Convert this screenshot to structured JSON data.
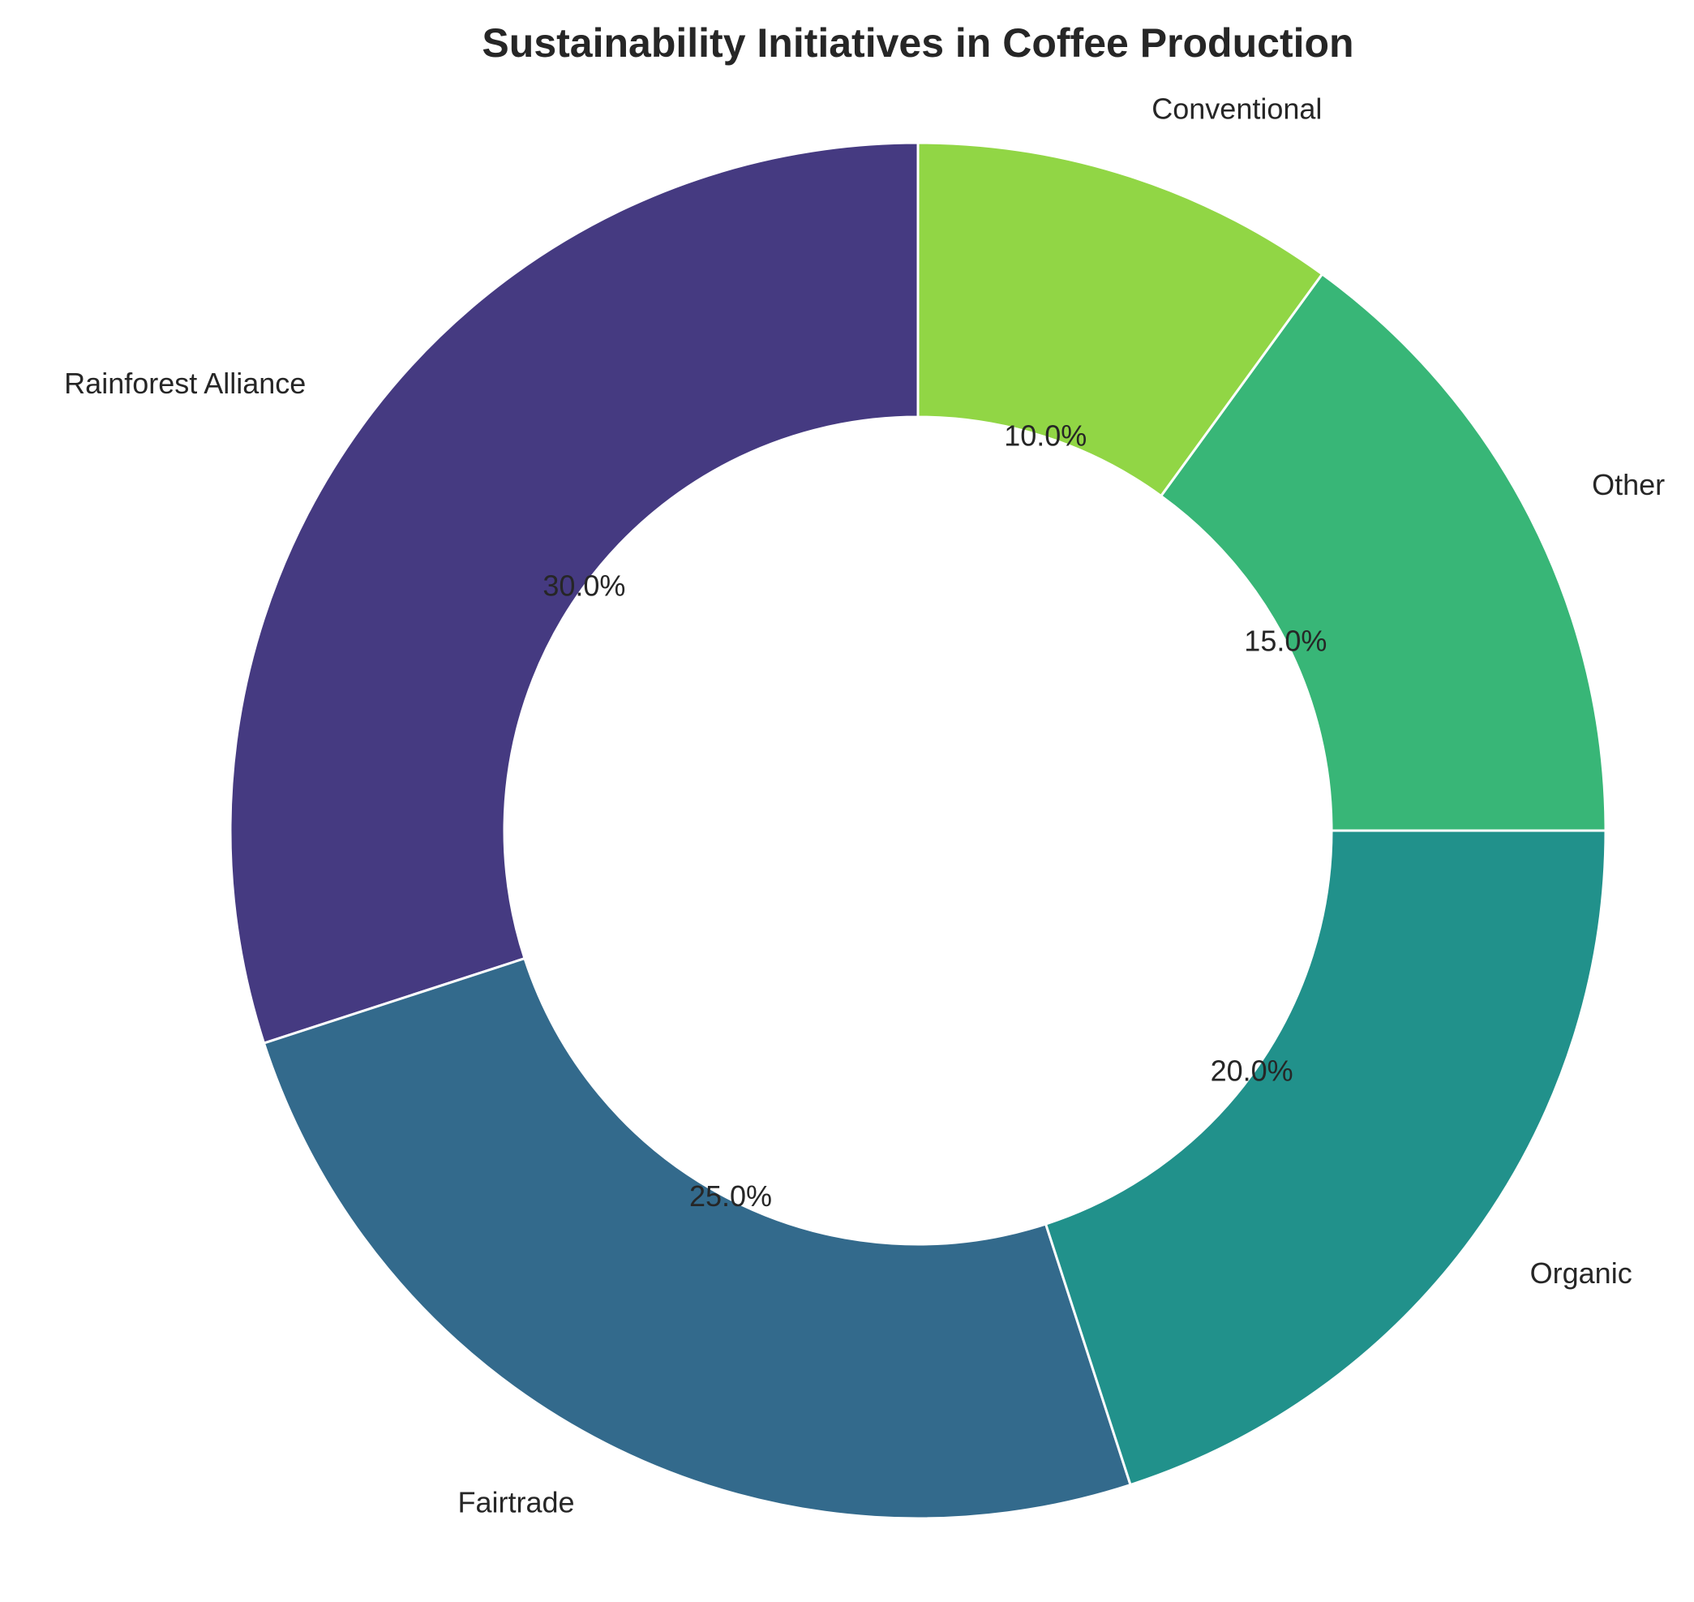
{
  "chart_data": {
    "type": "pie",
    "style": "donut",
    "title": "Sustainability Initiatives in Coffee Production",
    "categories": [
      "Rainforest Alliance",
      "Fairtrade",
      "Organic",
      "Other",
      "Conventional"
    ],
    "values": [
      30,
      25,
      20,
      15,
      10
    ],
    "percent_labels": [
      "30.0%",
      "25.0%",
      "20.0%",
      "15.0%",
      "10.0%"
    ],
    "colors": [
      "#453a81",
      "#336a8c",
      "#21918b",
      "#38b677",
      "#91d645"
    ],
    "start_angle_deg": 90,
    "direction": "counterclockwise",
    "legend": "none"
  }
}
